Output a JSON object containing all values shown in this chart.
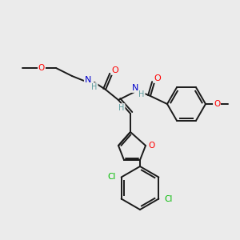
{
  "background_color": "#ebebeb",
  "bond_color": "#1a1a1a",
  "atom_colors": {
    "O": "#ff0000",
    "N": "#0000cc",
    "H": "#5f9ea0",
    "Cl": "#00bb00",
    "C": "#1a1a1a"
  },
  "figsize": [
    3.0,
    3.0
  ],
  "dpi": 100
}
